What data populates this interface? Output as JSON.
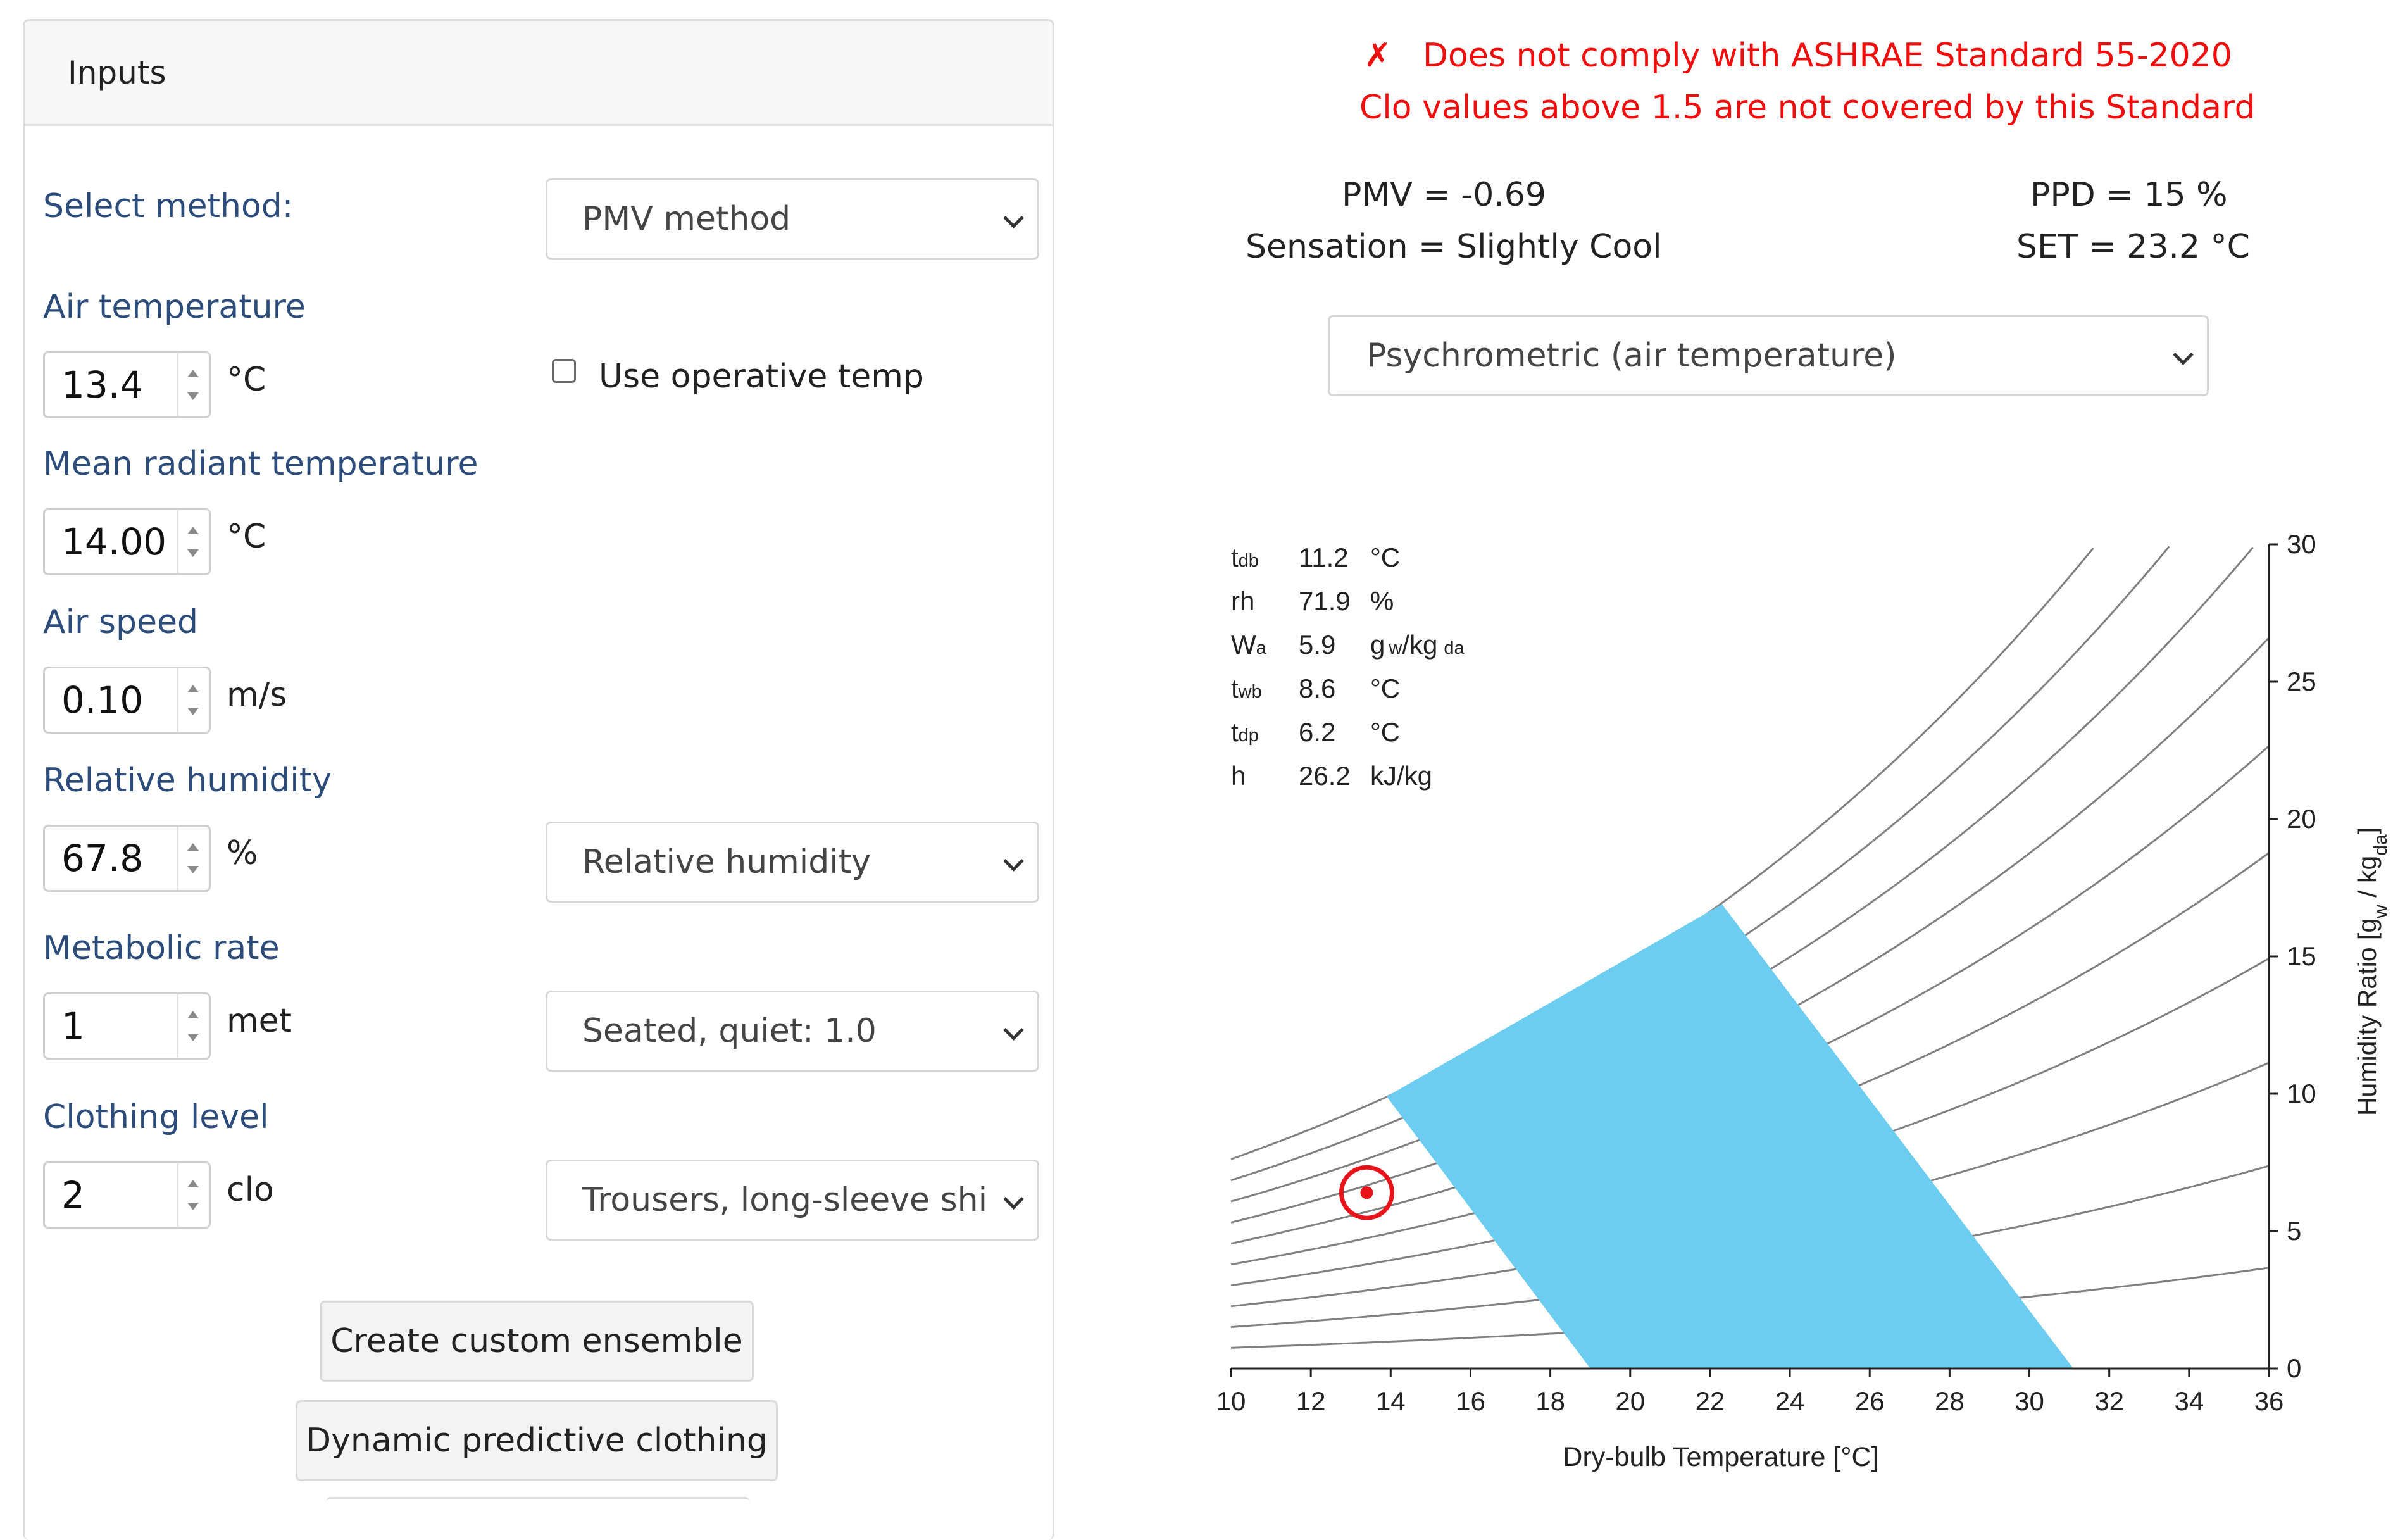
{
  "inputs": {
    "header": "Inputs",
    "method": {
      "label": "Select method:",
      "selected": "PMV method"
    },
    "air_temperature": {
      "label": "Air temperature",
      "value": "13.4",
      "unit": "°C",
      "operative_checkbox_label": "Use operative temp",
      "operative_checked": false
    },
    "mean_radiant_temperature": {
      "label": "Mean radiant temperature",
      "value": "14.00",
      "unit": "°C"
    },
    "air_speed": {
      "label": "Air speed",
      "value": "0.10",
      "unit": "m/s"
    },
    "relative_humidity": {
      "label": "Relative humidity",
      "value": "67.8",
      "unit": "%",
      "mode_selected": "Relative humidity"
    },
    "metabolic_rate": {
      "label": "Metabolic rate",
      "value": "1",
      "unit": "met",
      "activity_selected": "Seated, quiet: 1.0"
    },
    "clothing_level": {
      "label": "Clothing level",
      "value": "2",
      "unit": "clo",
      "ensemble_selected": "Trousers, long-sleeve shir"
    },
    "buttons": {
      "custom_ensemble": "Create custom ensemble",
      "dynamic_clothing": "Dynamic predictive clothing"
    }
  },
  "results": {
    "compliance_icon": "✗",
    "compliance": "Does not comply with ASHRAE Standard 55-2020",
    "compliance_note": "Clo values above 1.5 are not covered by this Standard",
    "pmv": "PMV = -0.69",
    "ppd": "PPD = 15 %",
    "sensation": "Sensation = Slightly Cool",
    "set": "SET = 23.2 °C",
    "chart_type_selected": "Psychrometric (air temperature)"
  },
  "readout": {
    "tdb": {
      "symbol": "t",
      "sub": "db",
      "value": "11.2",
      "unit": "°C"
    },
    "rh": {
      "symbol": "rh",
      "value": "71.9",
      "unit": "%"
    },
    "wa": {
      "symbol": "W",
      "sub": "a",
      "value": "5.9",
      "unit_main": "g",
      "unit_sub1": "w",
      "unit_mid": "/kg",
      "unit_sub2": "da"
    },
    "twb": {
      "symbol": "t",
      "sub": "wb",
      "value": "8.6",
      "unit": "°C"
    },
    "tdp": {
      "symbol": "t",
      "sub": "dp",
      "value": "6.2",
      "unit": "°C"
    },
    "h": {
      "symbol": "h",
      "value": "26.2",
      "unit": "kJ/kg"
    }
  },
  "colors": {
    "label_blue": "#2c4d7c",
    "warning_red": "#f20d0d",
    "comfort_zone": "#6ccdf0",
    "marker": "#e8141a",
    "curve": "#808080"
  },
  "chart_data": {
    "type": "psychrometric",
    "xlabel": "Dry-bulb Temperature [°C]",
    "ylabel_main": "Humidity Ratio [g",
    "ylabel_sub1": "w",
    "ylabel_mid": " / kg",
    "ylabel_sub2": "da",
    "ylabel_end": "]",
    "xlim": [
      10,
      36
    ],
    "ylim": [
      0,
      30
    ],
    "xticks": [
      "10",
      "12",
      "14",
      "16",
      "18",
      "20",
      "22",
      "24",
      "26",
      "28",
      "30",
      "32",
      "34",
      "36"
    ],
    "yticks": [
      "0",
      "5",
      "10",
      "15",
      "20",
      "25",
      "30"
    ],
    "rh_curves_percent": [
      10,
      20,
      30,
      40,
      50,
      60,
      70,
      80,
      90,
      100
    ],
    "comfort_zone": [
      [
        13.9,
        9.9
      ],
      [
        22.3,
        16.9
      ],
      [
        31.1,
        0
      ],
      [
        19,
        0
      ]
    ],
    "current_point": {
      "tdb": 13.4,
      "w": 6.4
    }
  }
}
